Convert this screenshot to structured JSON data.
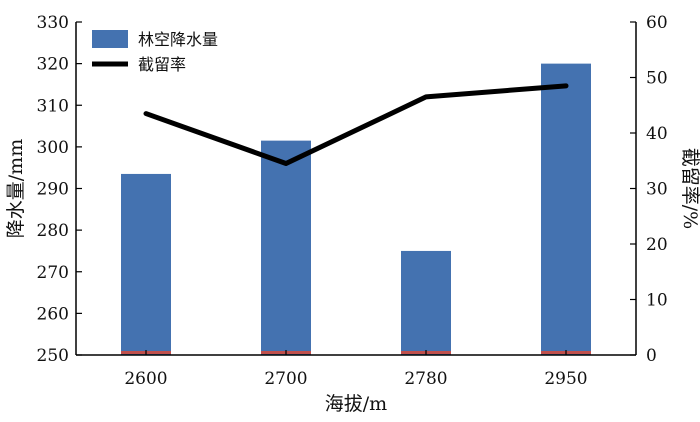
{
  "chart_data": {
    "type": "bar",
    "categories": [
      "2600",
      "2700",
      "2780",
      "2950"
    ],
    "xlabel": "海拔/m",
    "ylabel": "降水量/mm",
    "ylabel_right": "截留率/%",
    "ylim": [
      250,
      330
    ],
    "y_ticks": [
      250,
      260,
      270,
      280,
      290,
      300,
      310,
      320,
      330
    ],
    "ylim_right": [
      0,
      60
    ],
    "y_right_ticks": [
      0,
      10,
      20,
      30,
      40,
      50,
      60
    ],
    "series": [
      {
        "name": "林空降水量",
        "type": "bar",
        "axis": "left",
        "color": "#4472b0",
        "values": [
          293.5,
          301.5,
          275,
          320
        ]
      },
      {
        "name": "截留率",
        "type": "line",
        "axis": "right",
        "color": "#000000",
        "values": [
          43.5,
          34.5,
          46.5,
          48.5
        ]
      }
    ],
    "base_strip_color": "#c0504d",
    "legend": "top-left",
    "grid": false
  }
}
